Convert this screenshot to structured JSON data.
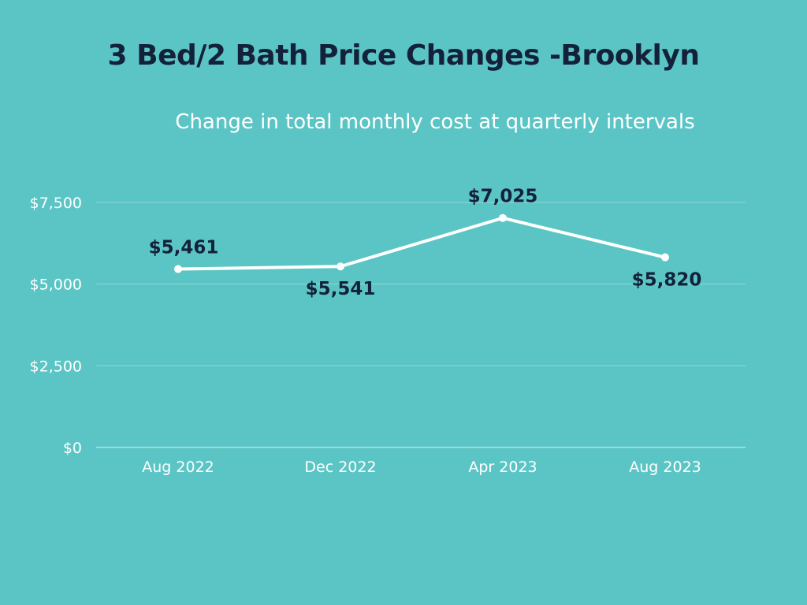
{
  "chart_data": {
    "type": "line",
    "title": "3 Bed/2 Bath Price Changes -Brooklyn",
    "subtitle": "Change in total monthly cost at quarterly intervals",
    "categories": [
      "Aug 2022",
      "Dec 2022",
      "Apr 2023",
      "Aug 2023"
    ],
    "series": [
      {
        "values": [
          5461,
          5541,
          7025,
          5820
        ],
        "labels": [
          "$5,461",
          "$5,541",
          "$7,025",
          "$5,820"
        ],
        "label_position": [
          "above",
          "below",
          "above",
          "below"
        ]
      }
    ],
    "yticks": [
      0,
      2500,
      5000,
      7500
    ],
    "ytick_labels": [
      "$0",
      "$2,500",
      "$5,000",
      "$7,500"
    ],
    "ylim": [
      0,
      7500
    ],
    "grid": true,
    "colors": {
      "background": "#5BC5C5",
      "line": "#FFFFFF",
      "gridline": "#8ED8D8",
      "title": "#14213A",
      "data_label": "#14213A"
    }
  }
}
